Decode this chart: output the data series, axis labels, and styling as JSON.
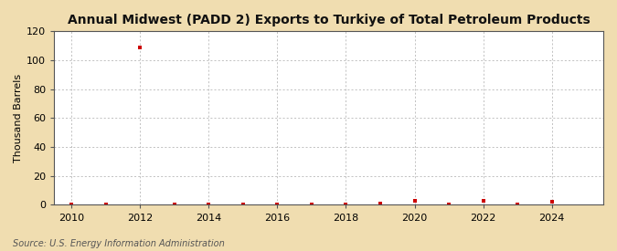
{
  "title": "Annual Midwest (PADD 2) Exports to Turkiye of Total Petroleum Products",
  "ylabel": "Thousand Barrels",
  "source": "Source: U.S. Energy Information Administration",
  "background_color": "#f0ddb0",
  "plot_background_color": "#ffffff",
  "xlim": [
    2009.5,
    2025.5
  ],
  "ylim": [
    0,
    120
  ],
  "yticks": [
    0,
    20,
    40,
    60,
    80,
    100,
    120
  ],
  "xticks": [
    2010,
    2012,
    2014,
    2016,
    2018,
    2020,
    2022,
    2024
  ],
  "years": [
    2010,
    2011,
    2012,
    2013,
    2014,
    2015,
    2016,
    2017,
    2018,
    2019,
    2020,
    2021,
    2022,
    2023,
    2024
  ],
  "values": [
    0,
    0,
    109,
    0,
    0,
    0,
    0,
    0,
    0,
    1,
    3,
    0,
    3,
    0,
    2
  ],
  "marker_color": "#cc0000",
  "marker_size": 3.5,
  "grid_color": "#aaaaaa",
  "title_fontsize": 10,
  "label_fontsize": 8,
  "tick_fontsize": 8,
  "source_fontsize": 7
}
